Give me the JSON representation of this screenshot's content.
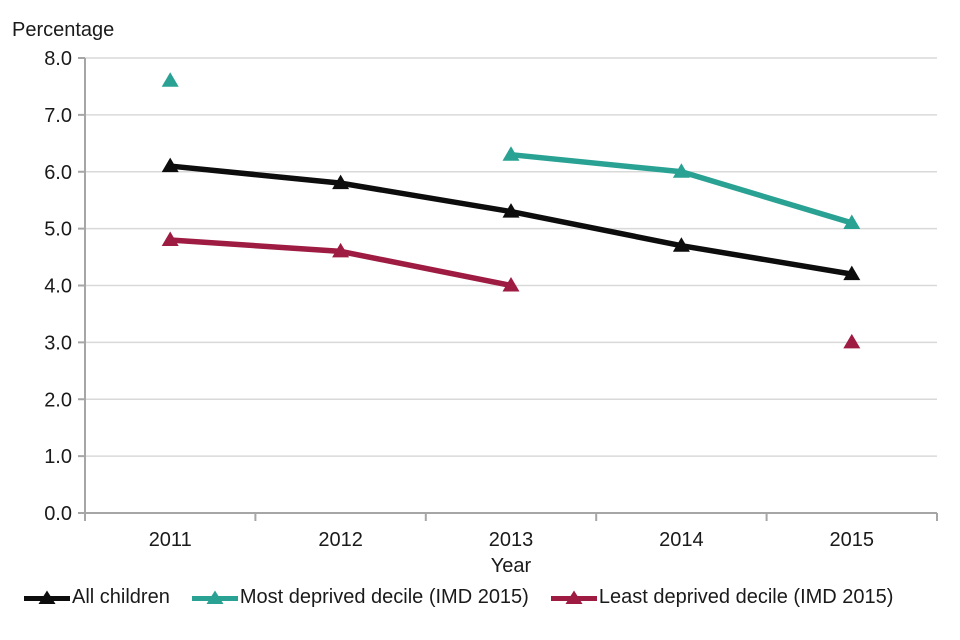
{
  "chart": {
    "y_axis_title": "Percentage",
    "x_axis_title": "Year"
  },
  "chart_data": {
    "type": "line",
    "title": "",
    "ylabel": "Percentage",
    "xlabel": "Year",
    "categories": [
      "2011",
      "2012",
      "2013",
      "2014",
      "2015"
    ],
    "ylim": [
      0.0,
      8.0
    ],
    "ytick_step": 1.0,
    "ytick_labels": [
      "0.0",
      "1.0",
      "2.0",
      "3.0",
      "4.0",
      "5.0",
      "6.0",
      "7.0",
      "8.0"
    ],
    "grid": "horizontal",
    "legend_position": "bottom",
    "marker": "triangle-up",
    "series": [
      {
        "name": "All children",
        "color": "#0d0d0d",
        "values": [
          6.1,
          5.8,
          5.3,
          4.7,
          4.2
        ]
      },
      {
        "name": "Most deprived decile (IMD 2015)",
        "color": "#29a294",
        "values": [
          7.6,
          null,
          6.3,
          6.0,
          5.1
        ]
      },
      {
        "name": "Least deprived decile (IMD 2015)",
        "color": "#9e1b42",
        "values": [
          4.8,
          4.6,
          4.0,
          null,
          3.0
        ]
      }
    ],
    "colors": {
      "gridline": "#d9d9d9",
      "axis": "#a6a6a6",
      "text": "#1a1a1a",
      "background": "#ffffff"
    }
  }
}
